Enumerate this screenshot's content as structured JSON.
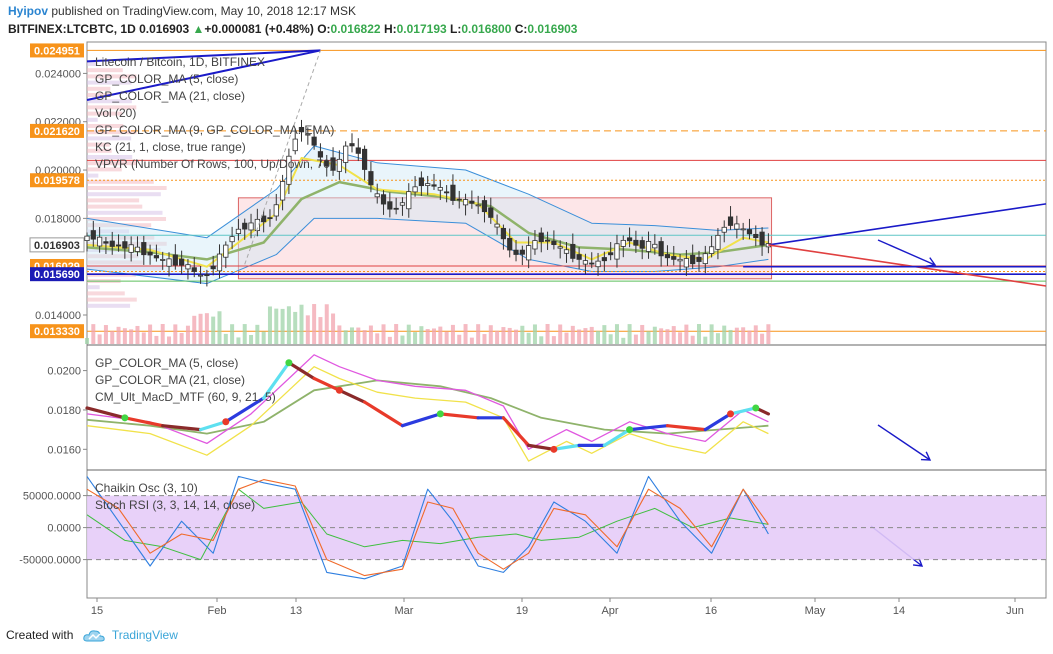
{
  "header": {
    "publisher": "Hyipov",
    "published_text": "published on TradingView.com, May 10, 2018 12:17 MSK",
    "symbol": "BITFINEX:LTCBTC, 1D",
    "last": "0.016903",
    "change_arrow": "▲",
    "change": "+0.000081 (+0.48%)",
    "O_label": "O:",
    "O": "0.016822",
    "H_label": "H:",
    "H": "0.017193",
    "L_label": "L:",
    "L": "0.016800",
    "C_label": "C:",
    "C": "0.016903"
  },
  "footer": {
    "created_with": "Created with",
    "brand": "TradingView",
    "logo_icon": "tradingview-cloud-icon"
  },
  "colors": {
    "up": "#37a84d",
    "down": "#e04040",
    "axis_tag_orange": "#f7931a",
    "axis_tag_blue": "#1b1bb5",
    "stoch_band": "#d9b8f5",
    "trendline": "#1a1ac8"
  },
  "chart_data": {
    "type": "candlestick",
    "title": "Litecoin / Bitcoin, 1D, BITFINEX",
    "x_axis": {
      "ticks": [
        "15",
        "Feb",
        "13",
        "Mar",
        "19",
        "Apr",
        "16",
        "May",
        "14",
        "Jun"
      ]
    },
    "main_panel": {
      "y_ticks": [
        "0.024000",
        "0.022000",
        "0.020000",
        "0.018000",
        "0.014000"
      ],
      "ylim": [
        0.0128,
        0.0253
      ],
      "price_tags": [
        {
          "label": "0.024951",
          "value": 0.024951,
          "color": "orange"
        },
        {
          "label": "0.021620",
          "value": 0.02162,
          "color": "orange"
        },
        {
          "label": "0.019578",
          "value": 0.019578,
          "color": "orange"
        },
        {
          "label": "0.016903",
          "value": 0.016903,
          "color": "white"
        },
        {
          "label": "0.016029",
          "value": 0.016029,
          "color": "orange"
        },
        {
          "label": "0.015690",
          "value": 0.01569,
          "color": "blue"
        },
        {
          "label": "0.013330",
          "value": 0.01333,
          "color": "orange"
        }
      ],
      "legend": [
        "Litecoin / Bitcoin, 1D, BITFINEX",
        "GP_COLOR_MA (5, close)",
        "GP_COLOR_MA (21, close)",
        "Vol (20)",
        "GP_COLOR_MA (9, GP_COLOR_MA: EMA)",
        "KC (21, 1, close, true range)",
        "VPVR (Number Of Rows, 100, Up/Down, 70)"
      ],
      "price_path": [
        [
          0,
          0.0174
        ],
        [
          4,
          0.0169
        ],
        [
          8,
          0.0168
        ],
        [
          12,
          0.0163
        ],
        [
          16,
          0.0161
        ],
        [
          19,
          0.0155
        ],
        [
          21,
          0.0162
        ],
        [
          24,
          0.0175
        ],
        [
          27,
          0.0178
        ],
        [
          30,
          0.0181
        ],
        [
          32,
          0.02
        ],
        [
          34,
          0.0218
        ],
        [
          36,
          0.0213
        ],
        [
          38,
          0.0202
        ],
        [
          40,
          0.0201
        ],
        [
          42,
          0.0212
        ],
        [
          44,
          0.0205
        ],
        [
          46,
          0.019
        ],
        [
          49,
          0.0183
        ],
        [
          51,
          0.0188
        ],
        [
          53,
          0.0195
        ],
        [
          56,
          0.0193
        ],
        [
          59,
          0.0188
        ],
        [
          62,
          0.0186
        ],
        [
          64,
          0.0183
        ],
        [
          66,
          0.0174
        ],
        [
          68,
          0.0165
        ],
        [
          70,
          0.0166
        ],
        [
          72,
          0.0172
        ],
        [
          74,
          0.017
        ],
        [
          76,
          0.0167
        ],
        [
          78,
          0.0164
        ],
        [
          80,
          0.0161
        ],
        [
          82,
          0.0162
        ],
        [
          84,
          0.0167
        ],
        [
          86,
          0.0172
        ],
        [
          88,
          0.0168
        ],
        [
          90,
          0.017
        ],
        [
          92,
          0.0164
        ],
        [
          94,
          0.0163
        ],
        [
          96,
          0.0162
        ],
        [
          98,
          0.0163
        ],
        [
          100,
          0.017
        ],
        [
          102,
          0.0179
        ],
        [
          104,
          0.0176
        ],
        [
          106,
          0.0173
        ],
        [
          108,
          0.0169
        ]
      ],
      "ma_fast_path": [
        [
          0,
          0.0169
        ],
        [
          10,
          0.0167
        ],
        [
          19,
          0.016
        ],
        [
          25,
          0.0172
        ],
        [
          30,
          0.0182
        ],
        [
          34,
          0.0205
        ],
        [
          40,
          0.0202
        ],
        [
          46,
          0.0192
        ],
        [
          55,
          0.019
        ],
        [
          62,
          0.0186
        ],
        [
          68,
          0.017
        ],
        [
          74,
          0.017
        ],
        [
          80,
          0.0163
        ],
        [
          86,
          0.017
        ],
        [
          92,
          0.0165
        ],
        [
          98,
          0.0163
        ],
        [
          104,
          0.0172
        ],
        [
          108,
          0.017
        ]
      ],
      "ma_slow_path": [
        [
          0,
          0.0168
        ],
        [
          10,
          0.0166
        ],
        [
          19,
          0.0163
        ],
        [
          28,
          0.017
        ],
        [
          34,
          0.0188
        ],
        [
          40,
          0.0195
        ],
        [
          48,
          0.0191
        ],
        [
          56,
          0.0189
        ],
        [
          64,
          0.0185
        ],
        [
          70,
          0.0174
        ],
        [
          78,
          0.0168
        ],
        [
          86,
          0.0167
        ],
        [
          94,
          0.0165
        ],
        [
          100,
          0.0166
        ],
        [
          108,
          0.0169
        ]
      ],
      "kc_upper_path": [
        [
          0,
          0.018
        ],
        [
          19,
          0.0172
        ],
        [
          30,
          0.0192
        ],
        [
          36,
          0.021
        ],
        [
          46,
          0.0203
        ],
        [
          60,
          0.02
        ],
        [
          70,
          0.019
        ],
        [
          80,
          0.0178
        ],
        [
          90,
          0.0177
        ],
        [
          100,
          0.0175
        ],
        [
          108,
          0.0176
        ]
      ],
      "kc_lower_path": [
        [
          0,
          0.0159
        ],
        [
          19,
          0.0153
        ],
        [
          30,
          0.0165
        ],
        [
          36,
          0.018
        ],
        [
          46,
          0.018
        ],
        [
          60,
          0.0178
        ],
        [
          70,
          0.0163
        ],
        [
          80,
          0.0158
        ],
        [
          90,
          0.0158
        ],
        [
          100,
          0.016
        ],
        [
          108,
          0.0163
        ]
      ],
      "hlines": [
        {
          "value": 0.024951,
          "color": "orange",
          "style": "solid"
        },
        {
          "value": 0.02162,
          "color": "orange",
          "style": "dashed"
        },
        {
          "value": 0.0204,
          "color": "red",
          "style": "solid"
        },
        {
          "value": 0.019578,
          "color": "orange",
          "style": "dotted"
        },
        {
          "value": 0.0173,
          "color": "teal",
          "style": "solid"
        },
        {
          "value": 0.016029,
          "color": "red",
          "style": "solid"
        },
        {
          "value": 0.0158,
          "color": "orange",
          "style": "dotted"
        },
        {
          "value": 0.01569,
          "color": "blue",
          "style": "solid"
        },
        {
          "value": 0.0154,
          "color": "green",
          "style": "solid"
        },
        {
          "value": 0.01333,
          "color": "orange",
          "style": "solid"
        }
      ]
    },
    "macd_panel": {
      "y_ticks": [
        "0.0200",
        "0.0180",
        "0.0160"
      ],
      "ylim": [
        0.015,
        0.0213
      ],
      "legend": [
        "GP_COLOR_MA (5, close)",
        "GP_COLOR_MA (21, close)",
        "CM_Ult_MacD_MTF (60, 9, 21, 5)"
      ],
      "fast_path": [
        [
          0,
          0.0178
        ],
        [
          10,
          0.0174
        ],
        [
          19,
          0.0163
        ],
        [
          26,
          0.0178
        ],
        [
          32,
          0.0196
        ],
        [
          36,
          0.0208
        ],
        [
          40,
          0.0202
        ],
        [
          46,
          0.0195
        ],
        [
          52,
          0.0192
        ],
        [
          60,
          0.019
        ],
        [
          66,
          0.0182
        ],
        [
          70,
          0.016
        ],
        [
          76,
          0.017
        ],
        [
          80,
          0.0164
        ],
        [
          86,
          0.0174
        ],
        [
          92,
          0.0168
        ],
        [
          98,
          0.0164
        ],
        [
          104,
          0.018
        ],
        [
          108,
          0.0174
        ]
      ],
      "slow_path": [
        [
          0,
          0.0175
        ],
        [
          10,
          0.0172
        ],
        [
          19,
          0.0168
        ],
        [
          28,
          0.0174
        ],
        [
          36,
          0.019
        ],
        [
          46,
          0.0195
        ],
        [
          56,
          0.0192
        ],
        [
          64,
          0.0186
        ],
        [
          72,
          0.0176
        ],
        [
          82,
          0.017
        ],
        [
          92,
          0.0168
        ],
        [
          100,
          0.017
        ],
        [
          108,
          0.0172
        ]
      ],
      "macd_path": [
        [
          0,
          0.0181
        ],
        [
          6,
          0.0176
        ],
        [
          12,
          0.0172
        ],
        [
          18,
          0.017
        ],
        [
          22,
          0.0174
        ],
        [
          28,
          0.0186
        ],
        [
          32,
          0.0204
        ],
        [
          36,
          0.0196
        ],
        [
          40,
          0.019
        ],
        [
          44,
          0.0184
        ],
        [
          50,
          0.0172
        ],
        [
          56,
          0.0178
        ],
        [
          62,
          0.0176
        ],
        [
          66,
          0.0176
        ],
        [
          70,
          0.0162
        ],
        [
          74,
          0.016
        ],
        [
          78,
          0.0162
        ],
        [
          82,
          0.0162
        ],
        [
          86,
          0.017
        ],
        [
          92,
          0.0172
        ],
        [
          98,
          0.017
        ],
        [
          102,
          0.0178
        ],
        [
          106,
          0.0181
        ],
        [
          108,
          0.0178
        ]
      ]
    },
    "osc_panel": {
      "y_ticks": [
        "50000.0000",
        "0.0000",
        "-50000.0000"
      ],
      "ylim": [
        -110000,
        90000
      ],
      "legend": [
        "Chaikin Osc (3, 10)",
        "Stoch RSI (3, 3, 14, 14, close)"
      ],
      "band": [
        -50000,
        50000
      ],
      "chaikin_path": [
        [
          0,
          20000
        ],
        [
          6,
          -20000
        ],
        [
          12,
          -30000
        ],
        [
          18,
          -50000
        ],
        [
          24,
          60000
        ],
        [
          28,
          30000
        ],
        [
          34,
          40000
        ],
        [
          38,
          -10000
        ],
        [
          44,
          -30000
        ],
        [
          50,
          -20000
        ],
        [
          56,
          -25000
        ],
        [
          62,
          -15000
        ],
        [
          68,
          -10000
        ],
        [
          72,
          -20000
        ],
        [
          78,
          -15000
        ],
        [
          84,
          10000
        ],
        [
          90,
          30000
        ],
        [
          96,
          0
        ],
        [
          102,
          15000
        ],
        [
          108,
          5000
        ]
      ],
      "stoch_k_path": [
        [
          0,
          80000
        ],
        [
          5,
          10000
        ],
        [
          10,
          -60000
        ],
        [
          15,
          10000
        ],
        [
          20,
          -40000
        ],
        [
          24,
          80000
        ],
        [
          28,
          70000
        ],
        [
          33,
          60000
        ],
        [
          38,
          -70000
        ],
        [
          44,
          -80000
        ],
        [
          50,
          -60000
        ],
        [
          54,
          60000
        ],
        [
          58,
          10000
        ],
        [
          62,
          -60000
        ],
        [
          66,
          -70000
        ],
        [
          70,
          -30000
        ],
        [
          74,
          40000
        ],
        [
          79,
          10000
        ],
        [
          84,
          -40000
        ],
        [
          89,
          80000
        ],
        [
          94,
          10000
        ],
        [
          99,
          -40000
        ],
        [
          104,
          60000
        ],
        [
          108,
          -10000
        ]
      ],
      "stoch_d_path": [
        [
          0,
          60000
        ],
        [
          5,
          30000
        ],
        [
          10,
          -40000
        ],
        [
          15,
          -10000
        ],
        [
          20,
          -20000
        ],
        [
          24,
          60000
        ],
        [
          28,
          75000
        ],
        [
          33,
          65000
        ],
        [
          38,
          -50000
        ],
        [
          44,
          -75000
        ],
        [
          50,
          -65000
        ],
        [
          54,
          40000
        ],
        [
          58,
          30000
        ],
        [
          62,
          -40000
        ],
        [
          66,
          -65000
        ],
        [
          70,
          -40000
        ],
        [
          74,
          30000
        ],
        [
          79,
          20000
        ],
        [
          84,
          -30000
        ],
        [
          89,
          60000
        ],
        [
          94,
          30000
        ],
        [
          99,
          -30000
        ],
        [
          104,
          60000
        ],
        [
          108,
          5000
        ]
      ]
    }
  }
}
